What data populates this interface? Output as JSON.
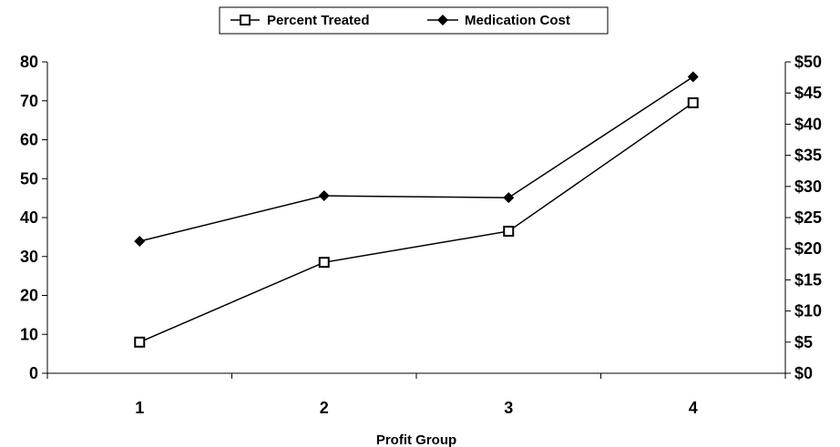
{
  "chart_data": {
    "type": "line",
    "categories": [
      "1",
      "2",
      "3",
      "4"
    ],
    "xlabel": "Profit Group",
    "ylabel_left": "",
    "ylabel_right": "",
    "ylim_left": [
      0,
      80
    ],
    "yticks_left": [
      "0",
      "10",
      "20",
      "30",
      "40",
      "50",
      "60",
      "70",
      "80"
    ],
    "ylim_right": [
      0,
      50
    ],
    "yticks_right": [
      "$0",
      "$5",
      "$10",
      "$15",
      "$20",
      "$25",
      "$30",
      "$35",
      "$40",
      "$45",
      "$50"
    ],
    "grid": false,
    "legend_placement": "top-center",
    "series": [
      {
        "name": "Percent Treated",
        "axis": "left",
        "marker": "square",
        "values": [
          8,
          28.5,
          36.5,
          69.5
        ]
      },
      {
        "name": "Medication Cost",
        "axis": "right",
        "marker": "diamond",
        "values": [
          21.2,
          28.5,
          28.2,
          47.6
        ]
      }
    ],
    "colors": {
      "line": "#000000",
      "marker_fill_square": "#ffffff",
      "marker_fill_diamond": "#000000"
    }
  }
}
